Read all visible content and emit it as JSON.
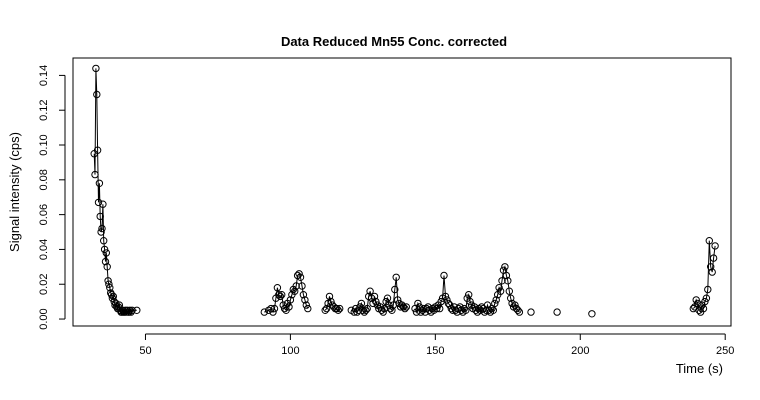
{
  "chart_data": {
    "type": "scatter",
    "title": "Data Reduced Mn55 Conc. corrected",
    "xlabel": "Time (s)",
    "ylabel": "Signal intensity (cps)",
    "xlim": [
      25,
      252
    ],
    "ylim": [
      -0.004,
      0.15
    ],
    "xticks": [
      50,
      100,
      150,
      200,
      250
    ],
    "yticks": [
      0.0,
      0.02,
      0.04,
      0.06,
      0.08,
      0.1,
      0.12,
      0.14
    ],
    "xtick_labels": [
      "50",
      "100",
      "150",
      "200",
      "250"
    ],
    "ytick_labels": [
      "0.00",
      "0.02",
      "0.04",
      "0.06",
      "0.08",
      "0.10",
      "0.12",
      "0.14"
    ],
    "grid": false,
    "marker": "open-circle",
    "line": "thin",
    "color": "#000000",
    "series": [
      {
        "x": [
          32.3,
          32.6,
          32.9,
          33.2,
          33.5,
          33.8,
          34.1,
          34.4,
          34.7,
          35.0,
          35.3,
          35.6,
          35.9,
          36.2,
          36.5,
          36.8,
          37.1,
          37.4,
          37.7,
          38.0,
          38.3,
          38.6,
          38.9,
          39.2,
          39.5,
          39.8,
          40.1,
          40.4,
          40.7,
          41.0,
          41.3,
          41.6,
          41.9,
          42.2,
          42.5,
          42.8,
          43.1,
          43.4,
          43.7,
          44.0,
          44.3,
          44.6,
          45.0,
          45.4,
          47.0,
          91.0,
          92.5,
          93.3,
          94.0,
          94.5,
          95.0,
          95.5,
          96.0,
          96.5,
          97.0,
          97.5,
          98.0,
          98.5,
          99.0,
          99.5,
          100.0,
          100.5,
          101.0,
          101.5,
          102.0,
          102.5,
          103.0,
          103.5,
          104.0,
          104.5,
          105.0,
          105.5,
          106.0,
          112.0,
          112.5,
          113.0,
          113.5,
          114.0,
          114.5,
          115.0,
          115.5,
          116.0,
          116.5,
          117.0,
          121.0,
          122.0,
          122.5,
          123.0,
          123.5,
          124.0,
          124.5,
          125.0,
          125.5,
          126.0,
          126.5,
          127.0,
          127.5,
          128.0,
          128.5,
          129.0,
          129.5,
          130.0,
          130.5,
          131.0,
          131.5,
          132.0,
          132.5,
          133.0,
          133.5,
          134.0,
          134.5,
          135.0,
          135.5,
          136.0,
          136.5,
          137.0,
          137.5,
          138.0,
          138.5,
          139.0,
          139.5,
          140.0,
          143.0,
          143.5,
          144.0,
          144.5,
          145.0,
          145.5,
          146.0,
          146.5,
          147.0,
          147.5,
          148.0,
          148.5,
          149.0,
          149.5,
          150.0,
          150.5,
          151.0,
          151.5,
          152.0,
          152.5,
          153.0,
          153.5,
          154.0,
          154.5,
          155.0,
          155.5,
          156.0,
          156.5,
          157.0,
          157.5,
          158.0,
          158.5,
          159.0,
          159.5,
          160.0,
          160.5,
          161.0,
          161.5,
          162.0,
          162.5,
          163.0,
          163.5,
          164.0,
          164.5,
          165.0,
          165.5,
          166.0,
          166.5,
          167.0,
          167.5,
          168.0,
          168.5,
          169.0,
          169.5,
          170.0,
          170.5,
          171.0,
          171.5,
          172.0,
          172.5,
          173.0,
          173.5,
          174.0,
          174.5,
          175.0,
          175.5,
          176.0,
          176.5,
          177.0,
          177.5,
          178.0,
          178.5,
          179.0,
          183.0,
          192.0,
          204.0,
          239.0,
          239.5,
          240.0,
          240.5,
          241.0,
          241.5,
          242.0,
          242.5,
          243.0,
          243.5,
          244.0,
          244.5,
          245.0,
          245.5,
          246.0,
          246.5
        ],
        "y": [
          0.095,
          0.083,
          0.144,
          0.129,
          0.097,
          0.067,
          0.078,
          0.059,
          0.05,
          0.052,
          0.066,
          0.045,
          0.04,
          0.033,
          0.038,
          0.03,
          0.022,
          0.02,
          0.018,
          0.015,
          0.014,
          0.012,
          0.013,
          0.01,
          0.008,
          0.009,
          0.007,
          0.006,
          0.007,
          0.008,
          0.005,
          0.004,
          0.004,
          0.005,
          0.004,
          0.004,
          0.005,
          0.004,
          0.005,
          0.004,
          0.004,
          0.005,
          0.004,
          0.005,
          0.005,
          0.004,
          0.005,
          0.006,
          0.004,
          0.006,
          0.012,
          0.018,
          0.014,
          0.013,
          0.014,
          0.008,
          0.006,
          0.005,
          0.009,
          0.007,
          0.011,
          0.014,
          0.017,
          0.016,
          0.019,
          0.025,
          0.026,
          0.024,
          0.019,
          0.014,
          0.011,
          0.008,
          0.006,
          0.005,
          0.006,
          0.009,
          0.013,
          0.01,
          0.008,
          0.007,
          0.006,
          0.006,
          0.005,
          0.006,
          0.005,
          0.004,
          0.006,
          0.004,
          0.005,
          0.007,
          0.009,
          0.005,
          0.004,
          0.005,
          0.006,
          0.013,
          0.016,
          0.012,
          0.009,
          0.013,
          0.01,
          0.008,
          0.006,
          0.007,
          0.005,
          0.004,
          0.006,
          0.01,
          0.012,
          0.008,
          0.006,
          0.005,
          0.008,
          0.017,
          0.024,
          0.011,
          0.009,
          0.007,
          0.008,
          0.007,
          0.006,
          0.007,
          0.006,
          0.004,
          0.009,
          0.007,
          0.004,
          0.005,
          0.006,
          0.004,
          0.006,
          0.007,
          0.005,
          0.004,
          0.006,
          0.005,
          0.007,
          0.006,
          0.008,
          0.006,
          0.01,
          0.012,
          0.025,
          0.013,
          0.011,
          0.009,
          0.008,
          0.006,
          0.005,
          0.007,
          0.005,
          0.004,
          0.006,
          0.007,
          0.005,
          0.004,
          0.006,
          0.005,
          0.012,
          0.014,
          0.01,
          0.008,
          0.006,
          0.007,
          0.005,
          0.004,
          0.006,
          0.005,
          0.007,
          0.006,
          0.004,
          0.005,
          0.008,
          0.005,
          0.004,
          0.006,
          0.005,
          0.009,
          0.011,
          0.014,
          0.018,
          0.016,
          0.022,
          0.028,
          0.03,
          0.025,
          0.022,
          0.016,
          0.012,
          0.009,
          0.007,
          0.008,
          0.006,
          0.005,
          0.004,
          0.004,
          0.004,
          0.003,
          0.006,
          0.007,
          0.011,
          0.009,
          0.005,
          0.004,
          0.008,
          0.006,
          0.01,
          0.012,
          0.017,
          0.045,
          0.03,
          0.027,
          0.035,
          0.042
        ]
      }
    ]
  }
}
